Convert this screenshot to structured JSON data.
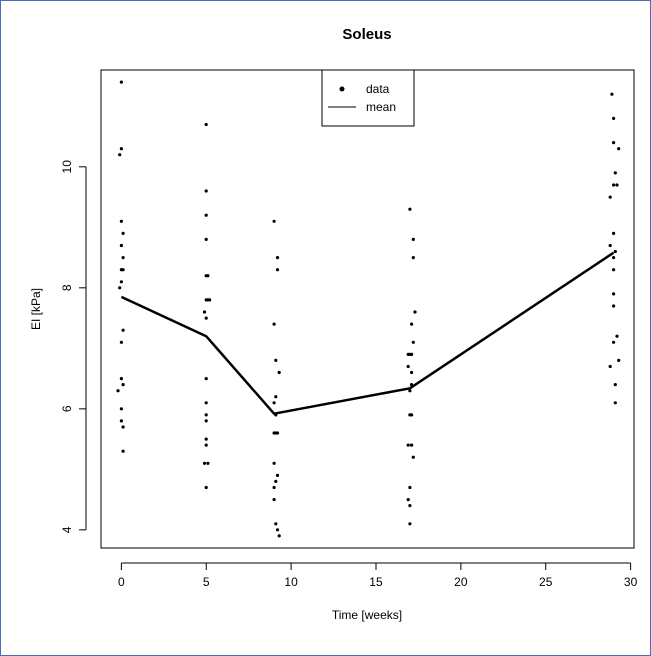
{
  "chart_data": {
    "type": "scatter",
    "title": "Soleus",
    "xlabel": "Time [weeks]",
    "ylabel": "EI  [kPa]",
    "xlim": [
      -1.2,
      30.2
    ],
    "ylim": [
      3.7,
      11.6
    ],
    "x_ticks": [
      0,
      5,
      10,
      15,
      20,
      25,
      30
    ],
    "y_ticks": [
      4,
      6,
      8,
      10
    ],
    "grid": false,
    "legend": {
      "placement": "top-center",
      "entries": [
        {
          "label": "data",
          "symbol": "point"
        },
        {
          "label": "mean",
          "symbol": "line"
        }
      ]
    },
    "series": [
      {
        "name": "data",
        "kind": "points",
        "points": [
          [
            0.0,
            11.4
          ],
          [
            0.0,
            10.3
          ],
          [
            -0.1,
            10.2
          ],
          [
            0.0,
            9.1
          ],
          [
            0.1,
            8.9
          ],
          [
            0.0,
            8.7
          ],
          [
            0.1,
            8.5
          ],
          [
            0.0,
            8.3
          ],
          [
            0.1,
            8.3
          ],
          [
            0.0,
            8.1
          ],
          [
            -0.1,
            8.0
          ],
          [
            0.1,
            7.3
          ],
          [
            0.0,
            7.1
          ],
          [
            0.0,
            6.5
          ],
          [
            0.1,
            6.4
          ],
          [
            -0.2,
            6.3
          ],
          [
            0.0,
            6.0
          ],
          [
            0.0,
            5.8
          ],
          [
            0.1,
            5.7
          ],
          [
            0.1,
            5.3
          ],
          [
            5.0,
            10.7
          ],
          [
            5.0,
            9.6
          ],
          [
            5.0,
            9.2
          ],
          [
            5.0,
            8.8
          ],
          [
            5.0,
            8.2
          ],
          [
            5.1,
            8.2
          ],
          [
            5.0,
            7.8
          ],
          [
            5.1,
            7.8
          ],
          [
            5.2,
            7.8
          ],
          [
            4.9,
            7.6
          ],
          [
            5.0,
            7.5
          ],
          [
            5.0,
            6.5
          ],
          [
            5.0,
            6.1
          ],
          [
            5.0,
            5.9
          ],
          [
            5.0,
            5.8
          ],
          [
            5.0,
            5.5
          ],
          [
            5.0,
            5.4
          ],
          [
            4.9,
            5.1
          ],
          [
            5.1,
            5.1
          ],
          [
            5.0,
            4.7
          ],
          [
            9.0,
            9.1
          ],
          [
            9.2,
            8.5
          ],
          [
            9.2,
            8.3
          ],
          [
            9.0,
            7.4
          ],
          [
            9.1,
            6.8
          ],
          [
            9.3,
            6.6
          ],
          [
            9.1,
            6.2
          ],
          [
            9.0,
            6.1
          ],
          [
            9.1,
            5.9
          ],
          [
            9.0,
            5.6
          ],
          [
            9.1,
            5.6
          ],
          [
            9.2,
            5.6
          ],
          [
            9.0,
            5.1
          ],
          [
            9.2,
            4.9
          ],
          [
            9.1,
            4.8
          ],
          [
            9.0,
            4.7
          ],
          [
            9.0,
            4.5
          ],
          [
            9.1,
            4.1
          ],
          [
            9.2,
            4.0
          ],
          [
            9.3,
            3.9
          ],
          [
            17.0,
            9.3
          ],
          [
            17.2,
            8.8
          ],
          [
            17.2,
            8.5
          ],
          [
            17.3,
            7.6
          ],
          [
            17.1,
            7.4
          ],
          [
            17.2,
            7.1
          ],
          [
            16.9,
            6.9
          ],
          [
            17.0,
            6.9
          ],
          [
            17.1,
            6.9
          ],
          [
            16.9,
            6.7
          ],
          [
            17.1,
            6.6
          ],
          [
            17.1,
            6.4
          ],
          [
            17.0,
            6.3
          ],
          [
            17.0,
            5.9
          ],
          [
            17.1,
            5.9
          ],
          [
            16.9,
            5.4
          ],
          [
            17.1,
            5.4
          ],
          [
            17.2,
            5.2
          ],
          [
            17.0,
            4.7
          ],
          [
            16.9,
            4.5
          ],
          [
            17.0,
            4.4
          ],
          [
            17.0,
            4.1
          ],
          [
            28.9,
            11.2
          ],
          [
            29.0,
            10.8
          ],
          [
            29.0,
            10.4
          ],
          [
            29.3,
            10.3
          ],
          [
            29.1,
            9.9
          ],
          [
            29.0,
            9.7
          ],
          [
            29.2,
            9.7
          ],
          [
            28.8,
            9.5
          ],
          [
            29.0,
            8.9
          ],
          [
            28.8,
            8.7
          ],
          [
            29.1,
            8.6
          ],
          [
            29.0,
            8.5
          ],
          [
            29.0,
            8.3
          ],
          [
            29.0,
            7.9
          ],
          [
            29.0,
            7.7
          ],
          [
            29.2,
            7.2
          ],
          [
            29.0,
            7.1
          ],
          [
            29.3,
            6.8
          ],
          [
            28.8,
            6.7
          ],
          [
            29.1,
            6.4
          ],
          [
            29.1,
            6.1
          ]
        ]
      },
      {
        "name": "mean",
        "kind": "line",
        "x": [
          0,
          5,
          9,
          17,
          29
        ],
        "y": [
          7.85,
          7.2,
          5.92,
          6.34,
          8.58
        ]
      }
    ]
  }
}
